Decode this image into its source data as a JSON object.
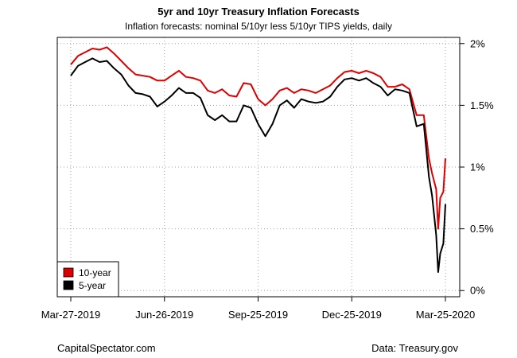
{
  "chart_data": {
    "type": "line",
    "title": "5yr and 10yr Treasury Inflation Forecasts",
    "subtitle": "Inflation forecasts: nominal 5/10yr less 5/10yr TIPS yields, daily",
    "xlabel": "",
    "ylabel": "",
    "x_ticks": [
      "Mar-27-2019",
      "Jun-26-2019",
      "Sep-25-2019",
      "Dec-25-2019",
      "Mar-25-2020"
    ],
    "y_ticks": [
      "0%",
      "0.5%",
      "1%",
      "1.5%",
      "2%"
    ],
    "ylim": [
      -0.05,
      2.05
    ],
    "y_axis_side": "right",
    "grid": true,
    "legend_position": "bottom-left",
    "series": [
      {
        "name": "10-year",
        "color": "#dd0000",
        "points": [
          [
            "2019-03-27",
            1.83
          ],
          [
            "2019-04-03",
            1.9
          ],
          [
            "2019-04-10",
            1.93
          ],
          [
            "2019-04-17",
            1.96
          ],
          [
            "2019-04-24",
            1.95
          ],
          [
            "2019-05-01",
            1.97
          ],
          [
            "2019-05-08",
            1.92
          ],
          [
            "2019-05-15",
            1.86
          ],
          [
            "2019-05-22",
            1.8
          ],
          [
            "2019-05-29",
            1.75
          ],
          [
            "2019-06-05",
            1.74
          ],
          [
            "2019-06-12",
            1.73
          ],
          [
            "2019-06-19",
            1.7
          ],
          [
            "2019-06-26",
            1.7
          ],
          [
            "2019-07-03",
            1.74
          ],
          [
            "2019-07-10",
            1.78
          ],
          [
            "2019-07-17",
            1.73
          ],
          [
            "2019-07-24",
            1.72
          ],
          [
            "2019-07-31",
            1.7
          ],
          [
            "2019-08-07",
            1.62
          ],
          [
            "2019-08-14",
            1.6
          ],
          [
            "2019-08-21",
            1.63
          ],
          [
            "2019-08-28",
            1.58
          ],
          [
            "2019-09-04",
            1.57
          ],
          [
            "2019-09-11",
            1.68
          ],
          [
            "2019-09-18",
            1.67
          ],
          [
            "2019-09-25",
            1.55
          ],
          [
            "2019-10-02",
            1.5
          ],
          [
            "2019-10-09",
            1.55
          ],
          [
            "2019-10-16",
            1.62
          ],
          [
            "2019-10-23",
            1.64
          ],
          [
            "2019-10-30",
            1.6
          ],
          [
            "2019-11-06",
            1.63
          ],
          [
            "2019-11-13",
            1.62
          ],
          [
            "2019-11-20",
            1.6
          ],
          [
            "2019-11-27",
            1.63
          ],
          [
            "2019-12-04",
            1.66
          ],
          [
            "2019-12-11",
            1.72
          ],
          [
            "2019-12-18",
            1.77
          ],
          [
            "2019-12-25",
            1.78
          ],
          [
            "2020-01-01",
            1.76
          ],
          [
            "2020-01-08",
            1.78
          ],
          [
            "2020-01-15",
            1.76
          ],
          [
            "2020-01-22",
            1.73
          ],
          [
            "2020-01-29",
            1.65
          ],
          [
            "2020-02-05",
            1.65
          ],
          [
            "2020-02-12",
            1.67
          ],
          [
            "2020-02-19",
            1.63
          ],
          [
            "2020-02-26",
            1.42
          ],
          [
            "2020-03-04",
            1.42
          ],
          [
            "2020-03-09",
            1.07
          ],
          [
            "2020-03-12",
            0.95
          ],
          [
            "2020-03-16",
            0.82
          ],
          [
            "2020-03-18",
            0.5
          ],
          [
            "2020-03-20",
            0.75
          ],
          [
            "2020-03-23",
            0.8
          ],
          [
            "2020-03-25",
            1.07
          ]
        ]
      },
      {
        "name": "5-year",
        "color": "#000000",
        "points": [
          [
            "2019-03-27",
            1.74
          ],
          [
            "2019-04-03",
            1.82
          ],
          [
            "2019-04-10",
            1.85
          ],
          [
            "2019-04-17",
            1.88
          ],
          [
            "2019-04-24",
            1.85
          ],
          [
            "2019-05-01",
            1.86
          ],
          [
            "2019-05-08",
            1.8
          ],
          [
            "2019-05-15",
            1.75
          ],
          [
            "2019-05-22",
            1.66
          ],
          [
            "2019-05-29",
            1.6
          ],
          [
            "2019-06-05",
            1.59
          ],
          [
            "2019-06-12",
            1.57
          ],
          [
            "2019-06-19",
            1.49
          ],
          [
            "2019-06-26",
            1.53
          ],
          [
            "2019-07-03",
            1.58
          ],
          [
            "2019-07-10",
            1.64
          ],
          [
            "2019-07-17",
            1.6
          ],
          [
            "2019-07-24",
            1.6
          ],
          [
            "2019-07-31",
            1.56
          ],
          [
            "2019-08-07",
            1.42
          ],
          [
            "2019-08-14",
            1.38
          ],
          [
            "2019-08-21",
            1.42
          ],
          [
            "2019-08-28",
            1.37
          ],
          [
            "2019-09-04",
            1.37
          ],
          [
            "2019-09-11",
            1.5
          ],
          [
            "2019-09-18",
            1.48
          ],
          [
            "2019-09-25",
            1.35
          ],
          [
            "2019-10-02",
            1.25
          ],
          [
            "2019-10-09",
            1.35
          ],
          [
            "2019-10-16",
            1.5
          ],
          [
            "2019-10-23",
            1.54
          ],
          [
            "2019-10-30",
            1.48
          ],
          [
            "2019-11-06",
            1.55
          ],
          [
            "2019-11-13",
            1.53
          ],
          [
            "2019-11-20",
            1.52
          ],
          [
            "2019-11-27",
            1.53
          ],
          [
            "2019-12-04",
            1.57
          ],
          [
            "2019-12-11",
            1.65
          ],
          [
            "2019-12-18",
            1.71
          ],
          [
            "2019-12-25",
            1.72
          ],
          [
            "2020-01-01",
            1.7
          ],
          [
            "2020-01-08",
            1.72
          ],
          [
            "2020-01-15",
            1.68
          ],
          [
            "2020-01-22",
            1.65
          ],
          [
            "2020-01-29",
            1.58
          ],
          [
            "2020-02-05",
            1.63
          ],
          [
            "2020-02-12",
            1.62
          ],
          [
            "2020-02-19",
            1.6
          ],
          [
            "2020-02-26",
            1.33
          ],
          [
            "2020-03-04",
            1.35
          ],
          [
            "2020-03-09",
            0.92
          ],
          [
            "2020-03-12",
            0.77
          ],
          [
            "2020-03-16",
            0.45
          ],
          [
            "2020-03-18",
            0.15
          ],
          [
            "2020-03-20",
            0.3
          ],
          [
            "2020-03-23",
            0.38
          ],
          [
            "2020-03-25",
            0.7
          ]
        ]
      }
    ]
  },
  "footer": {
    "source_left": "CapitalSpectator.com",
    "source_right": "Data: Treasury.gov"
  }
}
